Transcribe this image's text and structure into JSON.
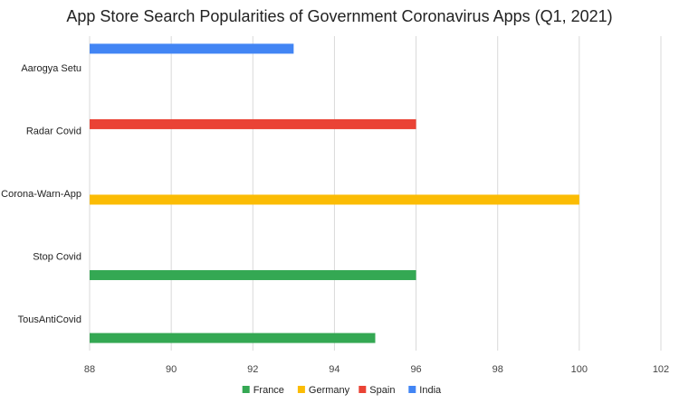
{
  "chart_data": {
    "type": "bar",
    "orientation": "horizontal",
    "title": "App Store Search Popularities of Government Coronavirus Apps (Q1, 2021)",
    "categories": [
      "Aarogya Setu",
      "Radar Covid",
      "Corona-Warn-App",
      "Stop Covid",
      "TousAntiCovid"
    ],
    "series": [
      {
        "name": "France",
        "color": "#34a853",
        "values": [
          null,
          null,
          null,
          96,
          95
        ]
      },
      {
        "name": "Germany",
        "color": "#fbbc04",
        "values": [
          null,
          null,
          100,
          null,
          null
        ]
      },
      {
        "name": "Spain",
        "color": "#ea4335",
        "values": [
          null,
          96,
          null,
          null,
          null
        ]
      },
      {
        "name": "India",
        "color": "#4285f4",
        "values": [
          93,
          null,
          null,
          null,
          null
        ]
      }
    ],
    "xlim": [
      88,
      102
    ],
    "xticks": [
      "88",
      "90",
      "92",
      "94",
      "96",
      "98",
      "100",
      "102"
    ],
    "grid": true,
    "legend_position": "bottom"
  }
}
